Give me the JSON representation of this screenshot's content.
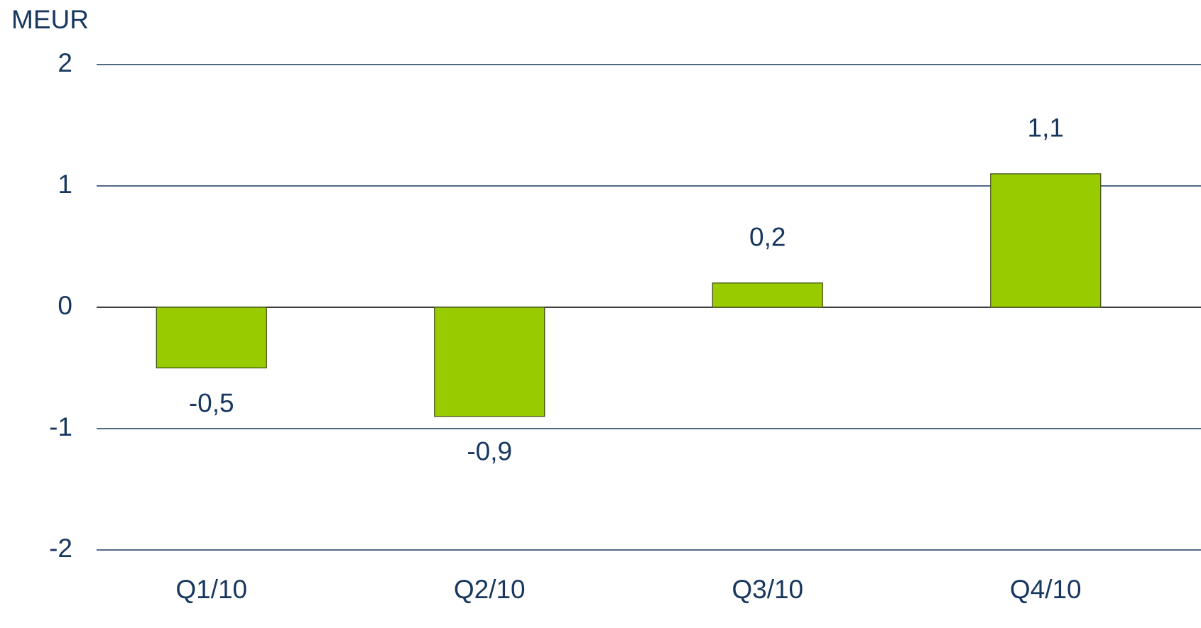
{
  "chart_data": {
    "type": "bar",
    "y_label": "MEUR",
    "categories": [
      "Q1/10",
      "Q2/10",
      "Q3/10",
      "Q4/10"
    ],
    "values": [
      -0.5,
      -0.9,
      0.2,
      1.1
    ],
    "value_labels": [
      "-0,5",
      "-0,9",
      "0,2",
      "1,1"
    ],
    "color": "#99cc00",
    "ylim": [
      -2,
      2
    ],
    "yticks": [
      -2,
      -1,
      0,
      1,
      2
    ],
    "grid": true
  }
}
